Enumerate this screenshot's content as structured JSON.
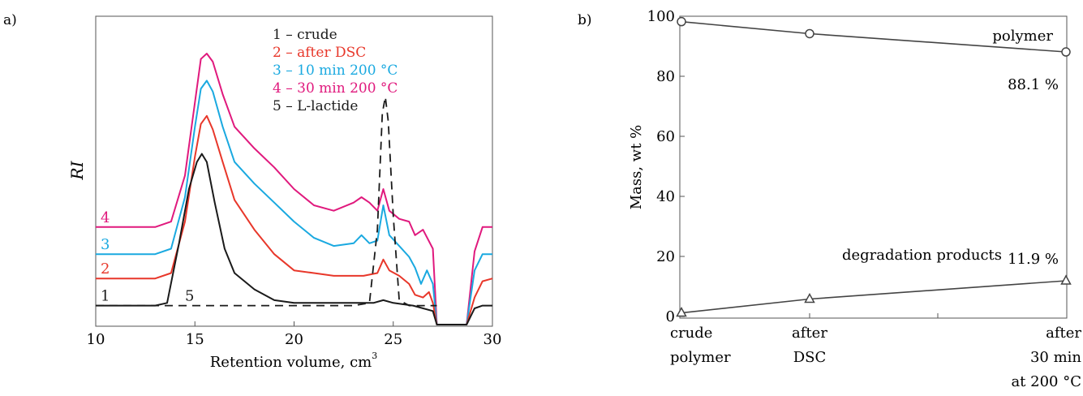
{
  "chart_data": [
    {
      "panel_label": "a)",
      "type": "line",
      "xlabel": "Retention volume, cm",
      "xlabel_superscript": "3",
      "ylabel": "RI",
      "xlim": [
        10,
        30
      ],
      "x_ticks": [
        "10",
        "15",
        "20",
        "25",
        "30"
      ],
      "legend": [
        {
          "text": "1 – crude",
          "color": "#1a1a1a"
        },
        {
          "text": "2 – after DSC",
          "color": "#e8372a"
        },
        {
          "text": "3 – 10 min 200 °C",
          "color": "#1aa9e0"
        },
        {
          "text": "4 – 30 min 200 °C",
          "color": "#e0197d"
        },
        {
          "text": "5 – L-lactide",
          "color": "#1a1a1a"
        }
      ],
      "series": [
        {
          "name": "4",
          "color": "#e0197d",
          "baseline": 0.36,
          "points": [
            [
              10,
              0.36
            ],
            [
              13,
              0.36
            ],
            [
              13.8,
              0.38
            ],
            [
              14.5,
              0.55
            ],
            [
              15,
              0.82
            ],
            [
              15.3,
              0.98
            ],
            [
              15.6,
              1.0
            ],
            [
              15.9,
              0.97
            ],
            [
              16.4,
              0.85
            ],
            [
              17,
              0.73
            ],
            [
              18,
              0.65
            ],
            [
              19,
              0.58
            ],
            [
              20,
              0.5
            ],
            [
              21,
              0.44
            ],
            [
              22,
              0.42
            ],
            [
              23,
              0.45
            ],
            [
              23.4,
              0.47
            ],
            [
              23.8,
              0.45
            ],
            [
              24.2,
              0.42
            ],
            [
              24.5,
              0.5
            ],
            [
              24.8,
              0.42
            ],
            [
              25.3,
              0.39
            ],
            [
              25.8,
              0.38
            ],
            [
              26.1,
              0.33
            ],
            [
              26.5,
              0.35
            ],
            [
              27,
              0.28
            ],
            [
              27.2,
              0.0
            ],
            [
              28.2,
              0.0
            ],
            [
              28.7,
              0.0
            ],
            [
              29.1,
              0.27
            ],
            [
              29.5,
              0.36
            ],
            [
              30,
              0.36
            ]
          ]
        },
        {
          "name": "3",
          "color": "#1aa9e0",
          "baseline": 0.26,
          "points": [
            [
              10,
              0.26
            ],
            [
              13,
              0.26
            ],
            [
              13.8,
              0.28
            ],
            [
              14.5,
              0.47
            ],
            [
              15,
              0.73
            ],
            [
              15.3,
              0.87
            ],
            [
              15.6,
              0.9
            ],
            [
              15.9,
              0.86
            ],
            [
              16.4,
              0.73
            ],
            [
              17,
              0.6
            ],
            [
              18,
              0.52
            ],
            [
              19,
              0.45
            ],
            [
              20,
              0.38
            ],
            [
              21,
              0.32
            ],
            [
              22,
              0.29
            ],
            [
              23,
              0.3
            ],
            [
              23.4,
              0.33
            ],
            [
              23.8,
              0.3
            ],
            [
              24.2,
              0.31
            ],
            [
              24.5,
              0.44
            ],
            [
              24.8,
              0.33
            ],
            [
              25.3,
              0.29
            ],
            [
              25.8,
              0.25
            ],
            [
              26.1,
              0.21
            ],
            [
              26.4,
              0.15
            ],
            [
              26.7,
              0.2
            ],
            [
              27,
              0.15
            ],
            [
              27.2,
              0.0
            ],
            [
              28.2,
              0.0
            ],
            [
              28.7,
              0.0
            ],
            [
              29.1,
              0.2
            ],
            [
              29.5,
              0.26
            ],
            [
              30,
              0.26
            ]
          ]
        },
        {
          "name": "2",
          "color": "#e8372a",
          "baseline": 0.17,
          "points": [
            [
              10,
              0.17
            ],
            [
              13,
              0.17
            ],
            [
              13.8,
              0.19
            ],
            [
              14.5,
              0.38
            ],
            [
              15,
              0.62
            ],
            [
              15.3,
              0.74
            ],
            [
              15.6,
              0.77
            ],
            [
              15.9,
              0.72
            ],
            [
              16.4,
              0.6
            ],
            [
              17,
              0.46
            ],
            [
              18,
              0.35
            ],
            [
              19,
              0.26
            ],
            [
              20,
              0.2
            ],
            [
              21,
              0.19
            ],
            [
              22,
              0.18
            ],
            [
              23,
              0.18
            ],
            [
              23.5,
              0.18
            ],
            [
              24.2,
              0.19
            ],
            [
              24.5,
              0.24
            ],
            [
              24.8,
              0.2
            ],
            [
              25.3,
              0.18
            ],
            [
              25.8,
              0.15
            ],
            [
              26.1,
              0.11
            ],
            [
              26.5,
              0.1
            ],
            [
              26.8,
              0.12
            ],
            [
              27,
              0.08
            ],
            [
              27.2,
              0.0
            ],
            [
              28.2,
              0.0
            ],
            [
              28.7,
              0.0
            ],
            [
              29.1,
              0.1
            ],
            [
              29.5,
              0.16
            ],
            [
              30,
              0.17
            ]
          ]
        },
        {
          "name": "1",
          "color": "#1a1a1a",
          "baseline": 0.07,
          "points": [
            [
              10,
              0.07
            ],
            [
              13,
              0.07
            ],
            [
              13.6,
              0.08
            ],
            [
              14.2,
              0.3
            ],
            [
              14.7,
              0.5
            ],
            [
              15.1,
              0.6
            ],
            [
              15.35,
              0.63
            ],
            [
              15.6,
              0.6
            ],
            [
              16,
              0.45
            ],
            [
              16.5,
              0.28
            ],
            [
              17,
              0.19
            ],
            [
              18,
              0.13
            ],
            [
              19,
              0.09
            ],
            [
              20,
              0.08
            ],
            [
              22,
              0.08
            ],
            [
              24,
              0.08
            ],
            [
              24.5,
              0.09
            ],
            [
              25,
              0.08
            ],
            [
              26,
              0.07
            ],
            [
              27,
              0.05
            ],
            [
              27.2,
              0.0
            ],
            [
              28.2,
              0.0
            ],
            [
              28.7,
              0.0
            ],
            [
              29.1,
              0.06
            ],
            [
              29.5,
              0.07
            ],
            [
              30,
              0.07
            ]
          ]
        },
        {
          "name": "5",
          "color": "#1a1a1a",
          "dashed": true,
          "baseline": 0.07,
          "points": [
            [
              10,
              0.07
            ],
            [
              23,
              0.07
            ],
            [
              23.8,
              0.08
            ],
            [
              24.2,
              0.35
            ],
            [
              24.45,
              0.78
            ],
            [
              24.6,
              0.84
            ],
            [
              24.75,
              0.75
            ],
            [
              25,
              0.4
            ],
            [
              25.3,
              0.09
            ],
            [
              25.8,
              0.07
            ],
            [
              27.2,
              0.07
            ]
          ]
        }
      ]
    },
    {
      "panel_label": "b)",
      "type": "line",
      "ylabel": "Mass, wt %",
      "ylim": [
        0,
        100
      ],
      "y_ticks": [
        "0",
        "20",
        "40",
        "60",
        "80",
        "100"
      ],
      "categories": [
        [
          "crude",
          "polymer"
        ],
        [
          "after",
          "DSC"
        ],
        [
          "after",
          "30 min",
          "at 200 °C"
        ]
      ],
      "series": [
        {
          "name": "polymer",
          "marker": "circle",
          "values": [
            98.2,
            94.2,
            88.1
          ]
        },
        {
          "name": "degradation products",
          "marker": "triangle",
          "values": [
            1.2,
            5.8,
            11.9
          ]
        }
      ],
      "annotations": [
        "88.1 %",
        "11.9 %"
      ]
    }
  ]
}
